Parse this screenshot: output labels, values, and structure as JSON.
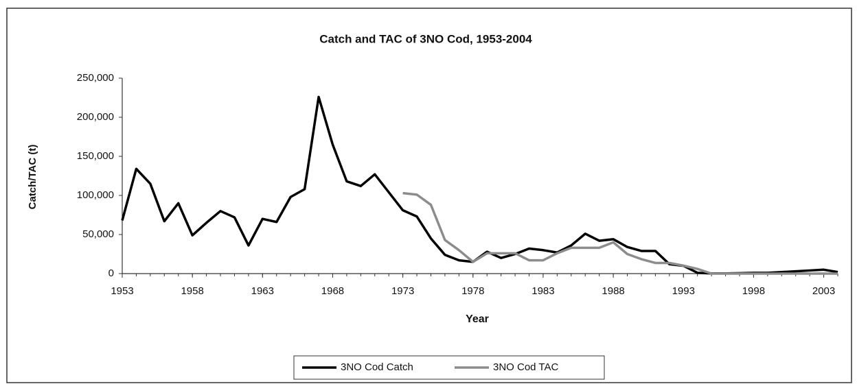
{
  "chart_data": {
    "type": "line",
    "title": "Catch and TAC of 3NO Cod, 1953-2004",
    "x_label": "Year",
    "y_label": "Catch/TAC (t)",
    "x": [
      1953,
      1954,
      1955,
      1956,
      1957,
      1958,
      1959,
      1960,
      1961,
      1962,
      1963,
      1964,
      1965,
      1966,
      1967,
      1968,
      1969,
      1970,
      1971,
      1972,
      1973,
      1974,
      1975,
      1976,
      1977,
      1978,
      1979,
      1980,
      1981,
      1982,
      1983,
      1984,
      1985,
      1986,
      1987,
      1988,
      1989,
      1990,
      1991,
      1992,
      1993,
      1994,
      1995,
      1996,
      1997,
      1998,
      1999,
      2000,
      2001,
      2002,
      2003,
      2004
    ],
    "series": [
      {
        "name": "3NO Cod Catch",
        "color": "#000000",
        "width": 3.5,
        "values": [
          68000,
          134000,
          115000,
          67000,
          90000,
          49000,
          65000,
          80000,
          72000,
          36000,
          70000,
          66000,
          98000,
          108000,
          226000,
          165000,
          118000,
          112000,
          127000,
          104000,
          81000,
          73000,
          45000,
          24000,
          17000,
          15000,
          28000,
          20000,
          25000,
          32000,
          30000,
          27000,
          36000,
          51000,
          42000,
          44000,
          34000,
          29000,
          29000,
          12000,
          10000,
          1000,
          200,
          200,
          500,
          1000,
          1000,
          2000,
          3000,
          4000,
          5000,
          2000
        ]
      },
      {
        "name": "3NO Cod TAC",
        "color": "#8c8c8c",
        "width": 3.5,
        "values": [
          null,
          null,
          null,
          null,
          null,
          null,
          null,
          null,
          null,
          null,
          null,
          null,
          null,
          null,
          null,
          null,
          null,
          null,
          null,
          null,
          103000,
          101000,
          88000,
          43000,
          30000,
          15000,
          26000,
          26000,
          26000,
          17000,
          17000,
          26000,
          33000,
          33000,
          33000,
          40000,
          25000,
          18500,
          13600,
          13600,
          10200,
          6000,
          0,
          0,
          0,
          0,
          0,
          0,
          0,
          0,
          0,
          0
        ]
      }
    ],
    "xlim": [
      1953,
      2004
    ],
    "xticks": [
      1953,
      1958,
      1963,
      1968,
      1973,
      1978,
      1983,
      1988,
      1993,
      1998,
      2003
    ],
    "ylim": [
      0,
      250000
    ],
    "yticks": [
      0,
      {
        "value": 50000,
        "label": "50,000"
      },
      {
        "value": 100000,
        "label": "100,000"
      },
      {
        "value": 150000,
        "label": "150,000"
      },
      {
        "value": 200000,
        "label": "200,000"
      },
      {
        "value": 250000,
        "label": "250,000"
      }
    ],
    "grid": false,
    "legend": "bottom"
  }
}
